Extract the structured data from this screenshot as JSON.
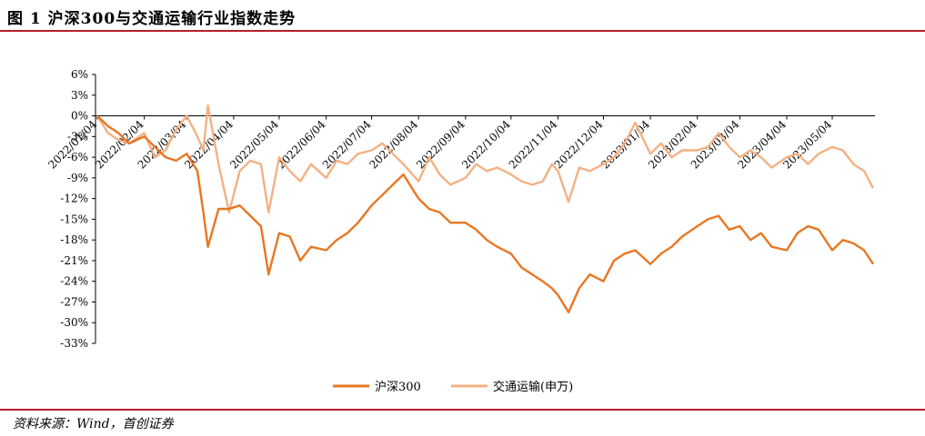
{
  "header": {
    "title": "图 1 沪深300与交通运输行业指数走势"
  },
  "footer": {
    "source": "资料来源：Wind，首创证券"
  },
  "chart_data": {
    "type": "line",
    "title": "图 1 沪深300与交通运输行业指数走势",
    "xlabel": "",
    "ylabel": "",
    "ylim": [
      -33,
      6
    ],
    "y_ticks": [
      6,
      3,
      0,
      -3,
      -6,
      -9,
      -12,
      -15,
      -18,
      -21,
      -24,
      -27,
      -30,
      -33
    ],
    "y_tick_labels": [
      "6%",
      "3%",
      "0%",
      "-3%",
      "-6%",
      "-9%",
      "-12%",
      "-15%",
      "-18%",
      "-21%",
      "-24%",
      "-27%",
      "-30%",
      "-33%"
    ],
    "x_tick_labels": [
      "2022/01/04",
      "2022/02/04",
      "2022/03/04",
      "2022/04/04",
      "2022/05/04",
      "2022/06/04",
      "2022/07/04",
      "2022/08/04",
      "2022/09/04",
      "2022/10/04",
      "2022/11/04",
      "2022/12/04",
      "2023/01/04",
      "2023/02/04",
      "2023/03/04",
      "2023/04/04",
      "2023/05/04"
    ],
    "x": [
      "2022/01/04",
      "2022/01/11",
      "2022/01/18",
      "2022/01/25",
      "2022/02/04",
      "2022/02/11",
      "2022/02/18",
      "2022/02/25",
      "2022/03/04",
      "2022/03/11",
      "2022/03/15",
      "2022/03/18",
      "2022/03/25",
      "2022/04/01",
      "2022/04/08",
      "2022/04/15",
      "2022/04/22",
      "2022/04/27",
      "2022/05/04",
      "2022/05/11",
      "2022/05/18",
      "2022/05/25",
      "2022/06/04",
      "2022/06/11",
      "2022/06/18",
      "2022/06/25",
      "2022/07/04",
      "2022/07/11",
      "2022/07/18",
      "2022/07/25",
      "2022/08/04",
      "2022/08/11",
      "2022/08/18",
      "2022/08/25",
      "2022/09/04",
      "2022/09/11",
      "2022/09/18",
      "2022/09/25",
      "2022/10/04",
      "2022/10/11",
      "2022/10/18",
      "2022/10/25",
      "2022/10/31",
      "2022/11/04",
      "2022/11/11",
      "2022/11/18",
      "2022/11/25",
      "2022/12/04",
      "2022/12/11",
      "2022/12/18",
      "2022/12/25",
      "2023/01/04",
      "2023/01/11",
      "2023/01/18",
      "2023/01/25",
      "2023/02/04",
      "2023/02/11",
      "2023/02/18",
      "2023/02/25",
      "2023/03/04",
      "2023/03/11",
      "2023/03/18",
      "2023/03/25",
      "2023/04/04",
      "2023/04/11",
      "2023/04/18",
      "2023/04/25",
      "2023/05/04",
      "2023/05/11",
      "2023/05/18",
      "2023/05/25",
      "2023/05/31"
    ],
    "series": [
      {
        "name": "沪深300",
        "color": "#e87722",
        "values": [
          0,
          -1.5,
          -2.5,
          -4,
          -3,
          -4.5,
          -6,
          -6.5,
          -5.5,
          -8,
          -14,
          -19,
          -13.5,
          -13.5,
          -13,
          -14.5,
          -16,
          -23,
          -17,
          -17.5,
          -21,
          -19,
          -19.5,
          -18,
          -17,
          -15.5,
          -13,
          -11.5,
          -10,
          -8.5,
          -12,
          -13.5,
          -14,
          -15.5,
          -15.5,
          -16.5,
          -18,
          -19,
          -20,
          -22,
          -23,
          -24,
          -25,
          -26,
          -28.5,
          -25,
          -23,
          -24,
          -21,
          -20,
          -19.5,
          -21.5,
          -20,
          -19,
          -17.5,
          -16,
          -15,
          -14.5,
          -16.5,
          -16,
          -18,
          -17,
          -19,
          -19.5,
          -17,
          -16,
          -16.5,
          -19.5,
          -18,
          -18.5,
          -19.5,
          -21.5
        ]
      },
      {
        "name": "交通运输(申万)",
        "color": "#f4b183",
        "values": [
          0,
          -2.5,
          -3.5,
          -4,
          -2.5,
          -6,
          -5,
          -2,
          0,
          -3,
          -5,
          1.5,
          -7,
          -14,
          -8,
          -6.5,
          -7,
          -14,
          -6,
          -8,
          -9.5,
          -7,
          -9,
          -6.5,
          -7,
          -5.5,
          -5,
          -4,
          -5.5,
          -7,
          -9.5,
          -6,
          -8.5,
          -10,
          -9,
          -7,
          -8,
          -7.5,
          -8.5,
          -9.5,
          -10,
          -9.5,
          -7,
          -8,
          -12.5,
          -7.5,
          -8,
          -7,
          -6,
          -4,
          -1,
          -5.5,
          -4,
          -6,
          -5,
          -5,
          -4.5,
          -2.5,
          -4.5,
          -6,
          -5,
          -6,
          -7.5,
          -6,
          -5.5,
          -7,
          -5.5,
          -4.5,
          -5,
          -7,
          -8,
          -10.5
        ]
      }
    ],
    "legend_position": "bottom-center",
    "grid": false
  }
}
